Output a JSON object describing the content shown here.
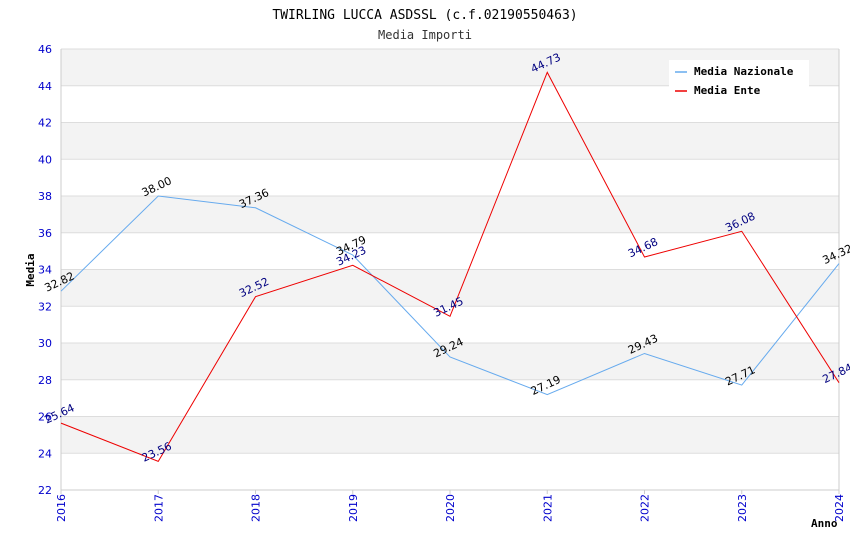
{
  "chart_data": {
    "type": "line",
    "title": "TWIRLING LUCCA ASDSSL (c.f.02190550463)",
    "subtitle": "Media Importi",
    "xlabel": "Anno",
    "ylabel": "Media",
    "x": [
      "2016",
      "2017",
      "2018",
      "2019",
      "2020",
      "2021",
      "2022",
      "2023",
      "2024"
    ],
    "ylim": [
      22,
      46
    ],
    "yticks": [
      22,
      24,
      26,
      28,
      30,
      32,
      34,
      36,
      38,
      40,
      42,
      44,
      46
    ],
    "ytick_labels": [
      "22",
      "24",
      "26",
      "28",
      "30",
      "32",
      "34",
      "36",
      "38",
      "40",
      "42",
      "44",
      "46"
    ],
    "grid": true,
    "legend_position": "top-right",
    "series": [
      {
        "name": "Media Nazionale",
        "color": "#66aaee",
        "label_color": "#000000",
        "values": [
          32.82,
          38.0,
          37.36,
          34.79,
          29.24,
          27.19,
          29.43,
          27.71,
          34.32
        ],
        "labels": [
          "32.82",
          "38.00",
          "37.36",
          "34.79",
          "29.24",
          "27.19",
          "29.43",
          "27.71",
          "34.32"
        ]
      },
      {
        "name": "Media Ente",
        "color": "#ee0000",
        "label_color": "#000080",
        "values": [
          25.64,
          23.56,
          32.52,
          34.23,
          31.45,
          44.73,
          34.68,
          36.08,
          27.84
        ],
        "labels": [
          "25.64",
          "23.56",
          "32.52",
          "34.23",
          "31.45",
          "44.73",
          "34.68",
          "36.08",
          "27.84"
        ]
      }
    ]
  }
}
